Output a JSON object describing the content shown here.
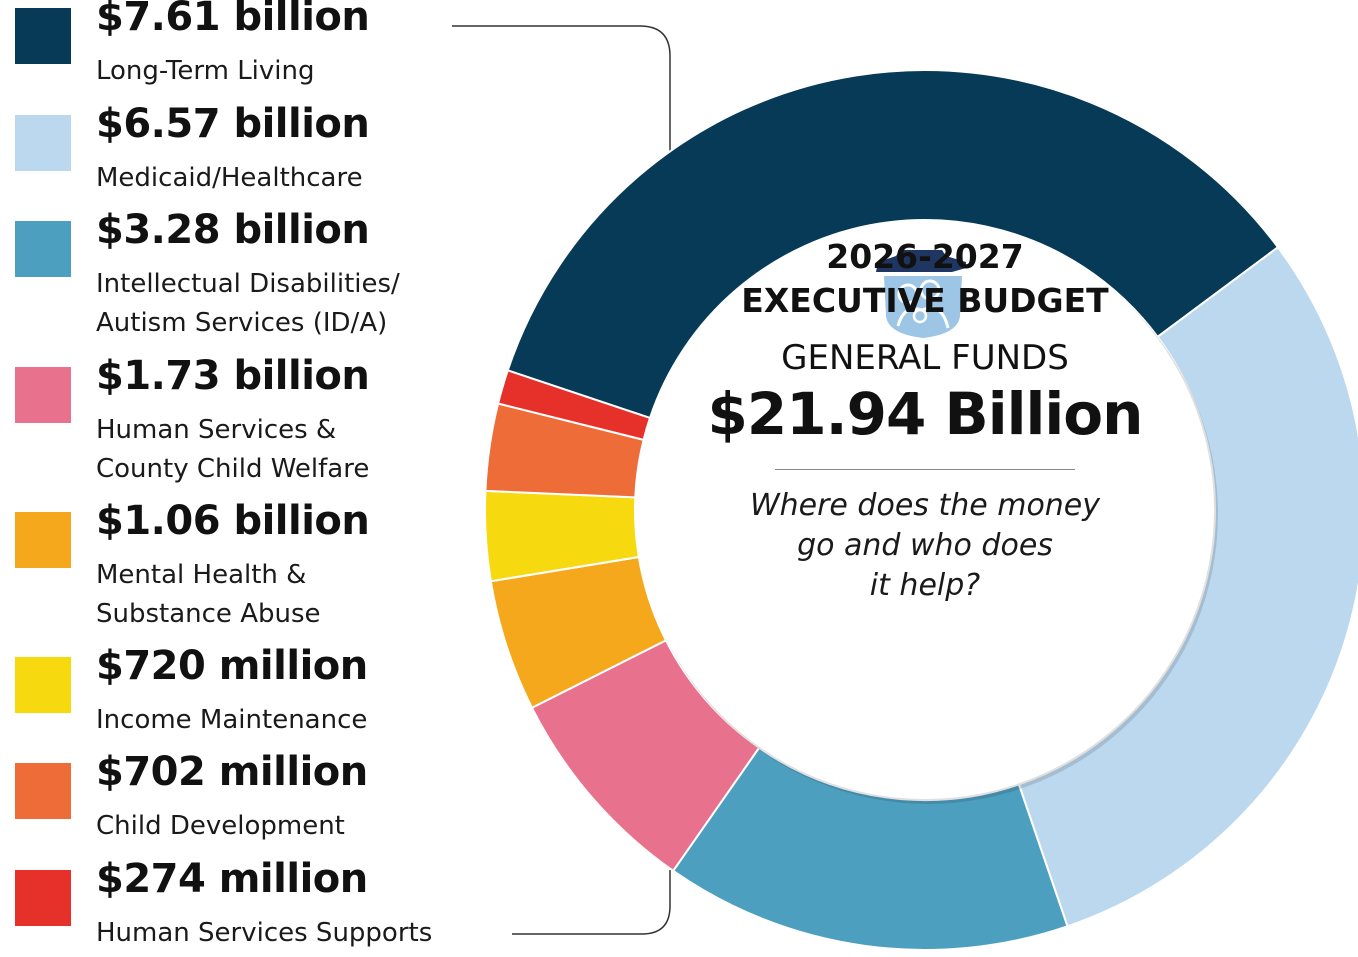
{
  "chart_data": {
    "type": "pie",
    "title": "2026-2027 EXECUTIVE BUDGET",
    "subtitle": "GENERAL FUNDS",
    "total": "$21.94 Billion",
    "question": "Where does the money\ngo and who does\nit help?",
    "categories": [
      "Long-Term Living",
      "Medicaid/Healthcare",
      "Intellectual Disabilities/\nAutism Services (ID/A)",
      "Human Services &\nCounty Child Welfare",
      "Mental Health &\nSubstance Abuse",
      "Income Maintenance",
      "Child Development",
      "Human Services Supports"
    ],
    "value_labels": [
      "$7.61 billion",
      "$6.57 billion",
      "$3.28 billion",
      "$1.73 billion",
      "$1.06 billion",
      "$720 million",
      "$702 million",
      "$274 million"
    ],
    "values": [
      7.61,
      6.57,
      3.28,
      1.73,
      1.06,
      0.72,
      0.702,
      0.274
    ],
    "unit": "billion",
    "colors": [
      "#063a57",
      "#bcd8ee",
      "#4d9fc0",
      "#e8718d",
      "#f5a81c",
      "#f6d90f",
      "#ee6c38",
      "#e6312a"
    ],
    "legend_placement": "left"
  },
  "logo": {
    "icon": "keystone-family-icon",
    "colors": [
      "#1e3661",
      "#9dc6e6"
    ]
  }
}
